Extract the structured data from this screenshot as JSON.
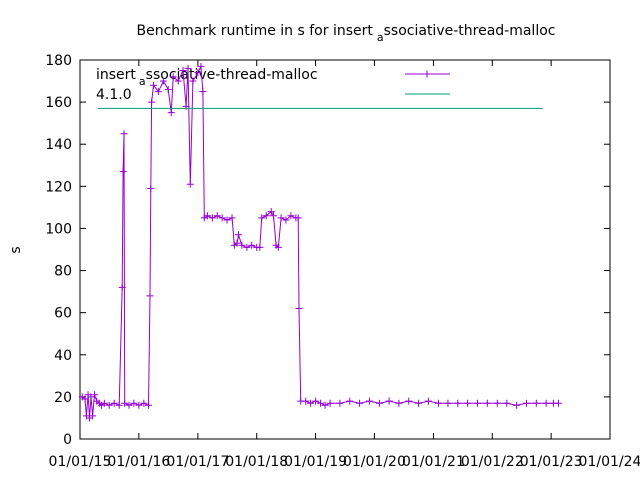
{
  "chart_data": {
    "type": "line",
    "title_main": "Benchmark runtime in s for insert",
    "title_sub": "a",
    "title_rest": "ssociative-thread-malloc",
    "ylabel": "s",
    "xlabel": "",
    "ylim": [
      0,
      180
    ],
    "xlim": [
      "2015-01-01",
      "2024-01-01"
    ],
    "y_ticks": [
      "0",
      "20",
      "40",
      "60",
      "80",
      "100",
      "120",
      "140",
      "160",
      "180"
    ],
    "x_ticks": [
      "01/01/15",
      "01/01/16",
      "01/01/17",
      "01/01/18",
      "01/01/19",
      "01/01/20",
      "01/01/21",
      "01/01/22",
      "01/01/23",
      "01/01/24"
    ],
    "legend": {
      "line1_main": "insert",
      "line1_sub": "a",
      "line1_rest": "ssociative-thread-malloc",
      "line2": "4.1.0"
    },
    "colors": {
      "series": "#9400d3",
      "reference": "#009e73"
    },
    "series": [
      {
        "points": [
          [
            "2015-01-15",
            20
          ],
          [
            "2015-02-01",
            19
          ],
          [
            "2015-02-10",
            11
          ],
          [
            "2015-02-20",
            21
          ],
          [
            "2015-03-01",
            10
          ],
          [
            "2015-03-10",
            20
          ],
          [
            "2015-03-20",
            11
          ],
          [
            "2015-04-01",
            21
          ],
          [
            "2015-04-15",
            18
          ],
          [
            "2015-05-01",
            17
          ],
          [
            "2015-05-15",
            16
          ],
          [
            "2015-06-01",
            17
          ],
          [
            "2015-07-01",
            16
          ],
          [
            "2015-08-01",
            17
          ],
          [
            "2015-09-01",
            16
          ],
          [
            "2015-09-20",
            72
          ],
          [
            "2015-09-25",
            127
          ],
          [
            "2015-10-01",
            145
          ],
          [
            "2015-10-05",
            17
          ],
          [
            "2015-11-01",
            16
          ],
          [
            "2015-12-01",
            17
          ],
          [
            "2016-01-01",
            16
          ],
          [
            "2016-02-01",
            17
          ],
          [
            "2016-03-01",
            16
          ],
          [
            "2016-03-10",
            68
          ],
          [
            "2016-03-15",
            119
          ],
          [
            "2016-03-20",
            160
          ],
          [
            "2016-04-01",
            168
          ],
          [
            "2016-05-01",
            165
          ],
          [
            "2016-06-01",
            170
          ],
          [
            "2016-07-01",
            166
          ],
          [
            "2016-07-20",
            155
          ],
          [
            "2016-08-01",
            172
          ],
          [
            "2016-09-01",
            170
          ],
          [
            "2016-10-01",
            175
          ],
          [
            "2016-10-20",
            158
          ],
          [
            "2016-11-01",
            176
          ],
          [
            "2016-11-15",
            121
          ],
          [
            "2016-12-01",
            170
          ],
          [
            "2017-01-01",
            174
          ],
          [
            "2017-01-20",
            177
          ],
          [
            "2017-02-01",
            165
          ],
          [
            "2017-02-10",
            105
          ],
          [
            "2017-03-01",
            106
          ],
          [
            "2017-04-01",
            105
          ],
          [
            "2017-05-01",
            106
          ],
          [
            "2017-06-01",
            105
          ],
          [
            "2017-07-01",
            104
          ],
          [
            "2017-08-01",
            105
          ],
          [
            "2017-08-15",
            92
          ],
          [
            "2017-09-01",
            93
          ],
          [
            "2017-09-10",
            97
          ],
          [
            "2017-10-01",
            92
          ],
          [
            "2017-11-01",
            91
          ],
          [
            "2017-12-01",
            92
          ],
          [
            "2018-01-01",
            91
          ],
          [
            "2018-01-20",
            91
          ],
          [
            "2018-02-01",
            105
          ],
          [
            "2018-03-01",
            106
          ],
          [
            "2018-04-01",
            108
          ],
          [
            "2018-04-15",
            106
          ],
          [
            "2018-05-01",
            92
          ],
          [
            "2018-05-15",
            91
          ],
          [
            "2018-06-01",
            105
          ],
          [
            "2018-07-01",
            104
          ],
          [
            "2018-08-01",
            106
          ],
          [
            "2018-09-01",
            105
          ],
          [
            "2018-09-15",
            105
          ],
          [
            "2018-09-20",
            62
          ],
          [
            "2018-10-01",
            18
          ],
          [
            "2018-11-01",
            18
          ],
          [
            "2018-12-01",
            17
          ],
          [
            "2019-01-01",
            18
          ],
          [
            "2019-02-01",
            17
          ],
          [
            "2019-03-01",
            16
          ],
          [
            "2019-04-01",
            17
          ],
          [
            "2019-06-01",
            17
          ],
          [
            "2019-08-01",
            18
          ],
          [
            "2019-10-01",
            17
          ],
          [
            "2019-12-01",
            18
          ],
          [
            "2020-02-01",
            17
          ],
          [
            "2020-04-01",
            18
          ],
          [
            "2020-06-01",
            17
          ],
          [
            "2020-08-01",
            18
          ],
          [
            "2020-10-01",
            17
          ],
          [
            "2020-12-01",
            18
          ],
          [
            "2021-02-01",
            17
          ],
          [
            "2021-04-01",
            17
          ],
          [
            "2021-06-01",
            17
          ],
          [
            "2021-08-01",
            17
          ],
          [
            "2021-10-01",
            17
          ],
          [
            "2021-12-01",
            17
          ],
          [
            "2022-02-01",
            17
          ],
          [
            "2022-04-01",
            17
          ],
          [
            "2022-06-01",
            16
          ],
          [
            "2022-08-01",
            17
          ],
          [
            "2022-10-01",
            17
          ],
          [
            "2022-12-01",
            17
          ],
          [
            "2023-01-15",
            17
          ],
          [
            "2023-02-15",
            17
          ]
        ]
      },
      {
        "type": "hline",
        "value": 157,
        "x_range": [
          "2015-01-01",
          "2023-03-01"
        ]
      }
    ]
  }
}
